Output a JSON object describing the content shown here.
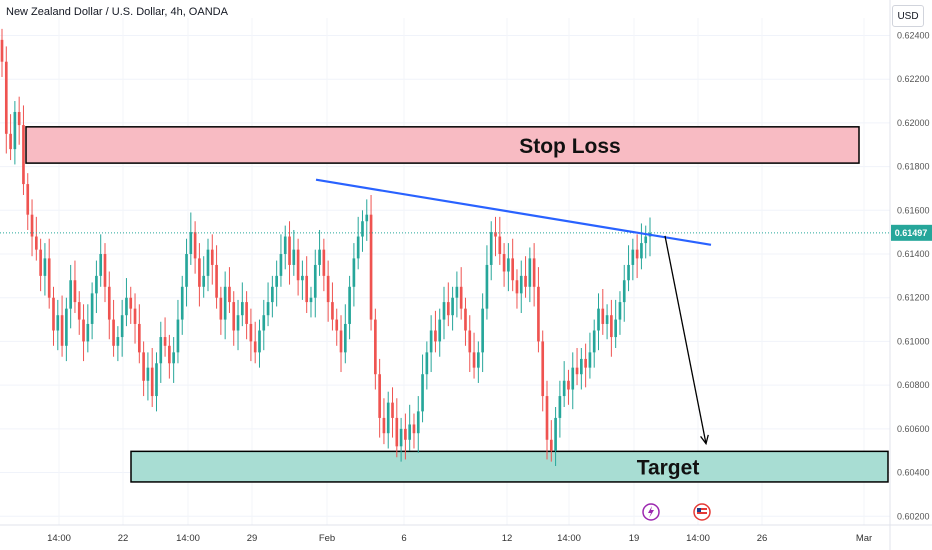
{
  "header": {
    "title": "New Zealand Dollar / U.S. Dollar, 4h, OANDA",
    "currency": "USD"
  },
  "colors": {
    "up": "#26a69a",
    "down": "#ef5350",
    "stop_fill": "#f8bbc3",
    "target_fill": "#a8ddd3",
    "trendline": "#2962ff",
    "projection": "#000000",
    "price_line": "#26a69a"
  },
  "chart_data": {
    "type": "candlestick",
    "symbol": "NZDUSD",
    "timeframe": "4h",
    "y_ticks": [
      "0.62400",
      "0.62200",
      "0.62000",
      "0.61800",
      "0.61600",
      "0.61400",
      "0.61200",
      "0.61000",
      "0.60800",
      "0.60600",
      "0.60400",
      "0.60200"
    ],
    "ylim": [
      0.6016,
      0.6248
    ],
    "x_ticks": [
      "14:00",
      "22",
      "14:00",
      "29",
      "Feb",
      "6",
      "12",
      "14:00",
      "19",
      "14:00",
      "26",
      "Mar"
    ],
    "current_price": "0.61497",
    "closes": [
      0.6228,
      0.6195,
      0.6188,
      0.6205,
      0.6199,
      0.6172,
      0.6158,
      0.6148,
      0.6142,
      0.613,
      0.6138,
      0.612,
      0.6105,
      0.6112,
      0.6098,
      0.6115,
      0.6128,
      0.6118,
      0.611,
      0.61,
      0.6108,
      0.6122,
      0.613,
      0.614,
      0.6125,
      0.611,
      0.6098,
      0.6102,
      0.6112,
      0.612,
      0.6115,
      0.6108,
      0.6095,
      0.6082,
      0.6088,
      0.6075,
      0.609,
      0.6102,
      0.6098,
      0.609,
      0.6095,
      0.611,
      0.6125,
      0.614,
      0.615,
      0.6138,
      0.6125,
      0.613,
      0.6142,
      0.6135,
      0.612,
      0.611,
      0.6125,
      0.6118,
      0.6105,
      0.6112,
      0.6118,
      0.6108,
      0.61,
      0.6095,
      0.6105,
      0.6112,
      0.6118,
      0.6125,
      0.613,
      0.614,
      0.6148,
      0.6135,
      0.6142,
      0.6128,
      0.613,
      0.6118,
      0.612,
      0.6135,
      0.6142,
      0.613,
      0.6118,
      0.611,
      0.6105,
      0.6095,
      0.6108,
      0.6125,
      0.6138,
      0.6148,
      0.6155,
      0.6158,
      0.611,
      0.6085,
      0.6065,
      0.6058,
      0.6072,
      0.6065,
      0.6052,
      0.606,
      0.6055,
      0.6062,
      0.6058,
      0.6068,
      0.6085,
      0.6095,
      0.6105,
      0.61,
      0.611,
      0.6118,
      0.6112,
      0.612,
      0.6125,
      0.6115,
      0.6105,
      0.6095,
      0.6088,
      0.6095,
      0.6115,
      0.6135,
      0.615,
      0.6148,
      0.614,
      0.6132,
      0.6138,
      0.6128,
      0.6122,
      0.613,
      0.6125,
      0.6138,
      0.6125,
      0.61,
      0.6075,
      0.6055,
      0.605,
      0.6065,
      0.6075,
      0.6082,
      0.6078,
      0.6088,
      0.6085,
      0.6092,
      0.6088,
      0.6095,
      0.6105,
      0.6115,
      0.6108,
      0.6112,
      0.6102,
      0.611,
      0.6118,
      0.6128,
      0.6135,
      0.6142,
      0.6138,
      0.6145,
      0.6148,
      0.61497
    ],
    "annotations": {
      "stop_loss": {
        "label": "Stop Loss",
        "price_low": 0.61816,
        "price_high": 0.61982
      },
      "target": {
        "label": "Target",
        "price_low": 0.60357,
        "price_high": 0.60497
      },
      "trendline": {
        "from_price": 0.6174,
        "to_price": 0.61442
      },
      "projection_end_price": 0.60505
    }
  }
}
